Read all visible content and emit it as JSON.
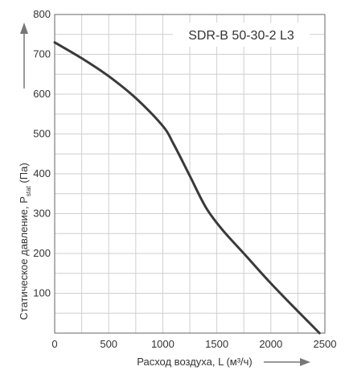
{
  "chart_data": {
    "type": "line",
    "title": "SDR-B 50-30-2 L3",
    "xlabel": "Расход воздуха, L (м³/ч)",
    "ylabel_main": "Статическое давление, P",
    "ylabel_sub": "stat",
    "ylabel_tail": " (Па)",
    "xlim": [
      0,
      2500
    ],
    "ylim": [
      0,
      800
    ],
    "x_ticks": [
      0,
      500,
      1000,
      1500,
      2000,
      2500
    ],
    "x_tick_labels": [
      "0",
      "500",
      "1000",
      "1500",
      "2000",
      "2500"
    ],
    "x_minor_step": 250,
    "y_ticks": [
      100,
      200,
      300,
      400,
      500,
      600,
      700,
      800
    ],
    "y_tick_labels": [
      "100",
      "200",
      "300",
      "400",
      "500",
      "600",
      "700",
      "800"
    ],
    "y_minor_step": 50,
    "grid": true,
    "colors": {
      "curve": "#3a3a3a",
      "grid": "#cfcfcf",
      "axis": "#666666",
      "plot_bg": "#ffffff"
    },
    "series": [
      {
        "x": [
          0,
          250,
          500,
          750,
          1000,
          1100,
          1250,
          1400,
          1550,
          1750,
          2000,
          2250,
          2450
        ],
        "y": [
          730,
          690,
          645,
          590,
          520,
          475,
          395,
          315,
          260,
          200,
          125,
          55,
          0
        ]
      }
    ]
  }
}
